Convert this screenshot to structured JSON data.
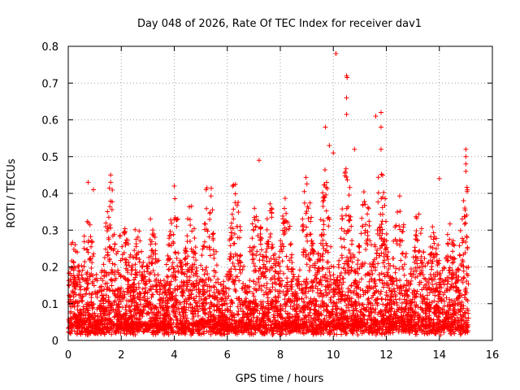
{
  "chart_data": {
    "type": "scatter",
    "title": "Day 048 of 2026, Rate Of TEC Index for receiver dav1",
    "xlabel": "GPS time / hours",
    "ylabel": "ROTI / TECUs",
    "xlim": [
      0,
      16
    ],
    "ylim": [
      0,
      0.8
    ],
    "xticks": [
      0,
      2,
      4,
      6,
      8,
      10,
      12,
      14,
      16
    ],
    "yticks": [
      0,
      0.1,
      0.2,
      0.3,
      0.4,
      0.5,
      0.6,
      0.7,
      0.8
    ],
    "xtick_labels": [
      "0",
      "2",
      "4",
      "6",
      "8",
      "10",
      "12",
      "14",
      "16"
    ],
    "ytick_labels": [
      "0",
      "0.1",
      "0.2",
      "0.3",
      "0.4",
      "0.5",
      "0.6",
      "0.7",
      "0.8"
    ],
    "grid": true,
    "marker": "+",
    "color": "#ff0000",
    "series": [
      {
        "name": "ROTI",
        "x_range": [
          0,
          15.1
        ],
        "typical_range": [
          0.02,
          0.25
        ],
        "notable_points": [
          {
            "x": 0.75,
            "y": 0.43
          },
          {
            "x": 0.95,
            "y": 0.41
          },
          {
            "x": 1.6,
            "y": 0.45
          },
          {
            "x": 1.6,
            "y": 0.43
          },
          {
            "x": 3.1,
            "y": 0.33
          },
          {
            "x": 4.0,
            "y": 0.42
          },
          {
            "x": 5.2,
            "y": 0.41
          },
          {
            "x": 6.2,
            "y": 0.42
          },
          {
            "x": 7.2,
            "y": 0.49
          },
          {
            "x": 9.7,
            "y": 0.58
          },
          {
            "x": 9.85,
            "y": 0.53
          },
          {
            "x": 10.0,
            "y": 0.51
          },
          {
            "x": 10.1,
            "y": 0.78
          },
          {
            "x": 10.5,
            "y": 0.72
          },
          {
            "x": 10.52,
            "y": 0.715
          },
          {
            "x": 10.5,
            "y": 0.66
          },
          {
            "x": 10.5,
            "y": 0.615
          },
          {
            "x": 10.8,
            "y": 0.52
          },
          {
            "x": 11.6,
            "y": 0.61
          },
          {
            "x": 11.8,
            "y": 0.62
          },
          {
            "x": 11.8,
            "y": 0.58
          },
          {
            "x": 11.8,
            "y": 0.52
          },
          {
            "x": 14.0,
            "y": 0.44
          },
          {
            "x": 15.0,
            "y": 0.52
          },
          {
            "x": 15.0,
            "y": 0.5
          },
          {
            "x": 15.0,
            "y": 0.48
          },
          {
            "x": 15.0,
            "y": 0.46
          }
        ]
      }
    ]
  }
}
